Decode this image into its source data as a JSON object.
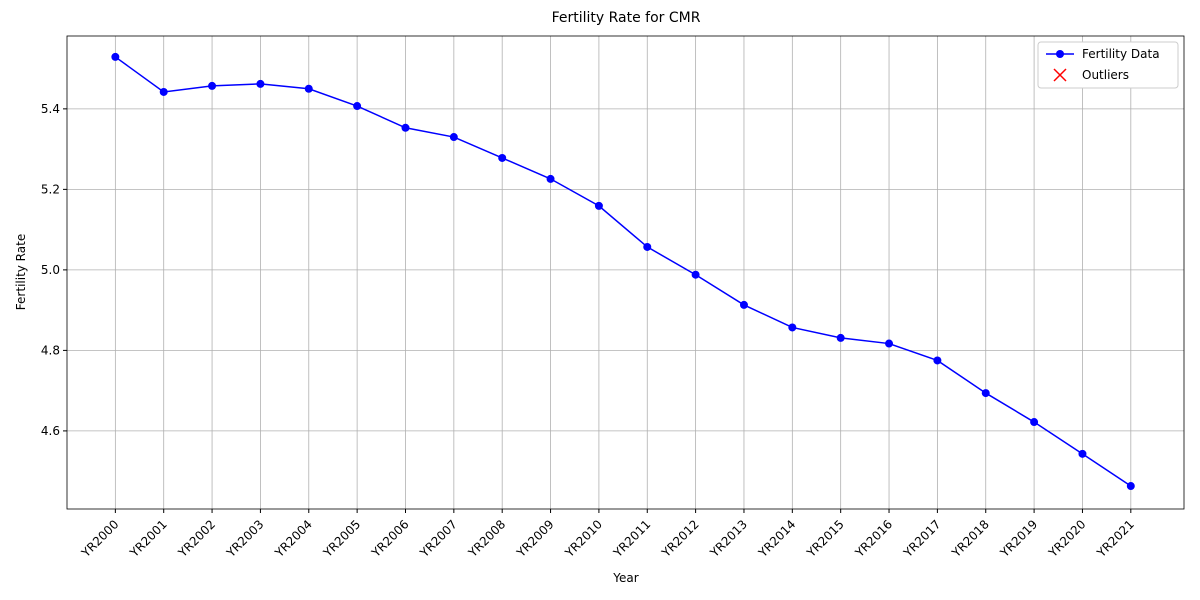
{
  "chart_data": {
    "type": "line",
    "title": "Fertility Rate for CMR",
    "x_label": "Year",
    "y_label": "Fertility Rate",
    "categories": [
      "YR2000",
      "YR2001",
      "YR2002",
      "YR2003",
      "YR2004",
      "YR2005",
      "YR2006",
      "YR2007",
      "YR2008",
      "YR2009",
      "YR2010",
      "YR2011",
      "YR2012",
      "YR2013",
      "YR2014",
      "YR2015",
      "YR2016",
      "YR2017",
      "YR2018",
      "YR2019",
      "YR2020",
      "YR2021"
    ],
    "series": [
      {
        "name": "Fertility Data",
        "color": "#0000ff",
        "values": [
          5.529,
          5.442,
          5.457,
          5.462,
          5.45,
          5.407,
          5.353,
          5.33,
          5.278,
          5.226,
          5.159,
          5.057,
          4.988,
          4.913,
          4.857,
          4.831,
          4.817,
          4.775,
          4.694,
          4.622,
          4.543,
          4.463
        ]
      },
      {
        "name": "Outliers",
        "color": "#ff0000",
        "values": [
          null,
          null,
          null,
          null,
          null,
          null,
          null,
          null,
          null,
          null,
          null,
          null,
          null,
          null,
          null,
          null,
          null,
          null,
          null,
          null,
          null,
          null
        ]
      }
    ],
    "ylim": [
      4.406,
      5.581
    ],
    "yticks": [
      4.6,
      4.8,
      {
        "value": 5,
        "label": "5.0"
      },
      5.2,
      5.4
    ],
    "grid": true,
    "legend": "upper right"
  }
}
